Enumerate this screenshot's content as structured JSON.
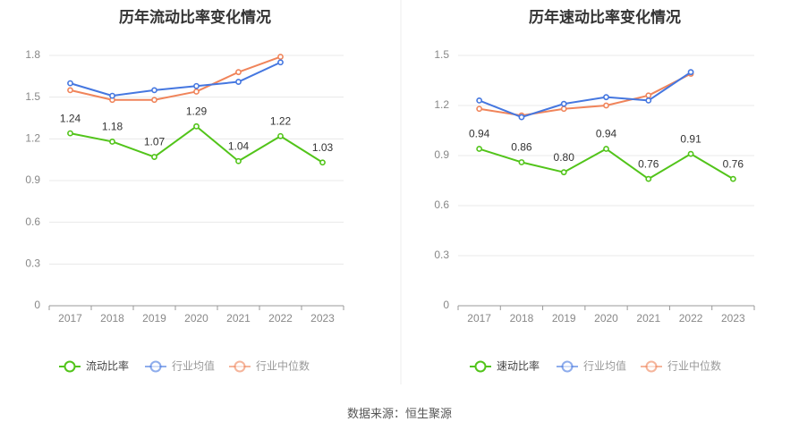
{
  "source_text": "数据来源：恒生聚源",
  "colors": {
    "primary": "#52c41a",
    "industry_avg": "#4577e0",
    "industry_median": "#f0845a",
    "grid": "#e8e8e8",
    "axis": "#999999",
    "axis_text": "#888888",
    "label_text": "#333333",
    "divider": "#eeeeee"
  },
  "chart_data": [
    {
      "type": "line",
      "title": "历年流动比率变化情况",
      "categories": [
        "2017",
        "2018",
        "2019",
        "2020",
        "2021",
        "2022",
        "2023"
      ],
      "ylim": [
        0,
        1.8
      ],
      "yticks": [
        "0",
        "0.3",
        "0.6",
        "0.9",
        "1.2",
        "1.5",
        "1.8"
      ],
      "grid": true,
      "legend_position": "bottom",
      "series": [
        {
          "name": "流动比率",
          "values": [
            1.24,
            1.18,
            1.07,
            1.29,
            1.04,
            1.22,
            1.03
          ],
          "labels": [
            "1.24",
            "1.18",
            "1.07",
            "1.29",
            "1.04",
            "1.22",
            "1.03"
          ],
          "color": "#52c41a"
        },
        {
          "name": "行业均值",
          "values": [
            1.6,
            1.51,
            1.55,
            1.58,
            1.61,
            1.75,
            null
          ],
          "color": "#4577e0"
        },
        {
          "name": "行业中位数",
          "values": [
            1.55,
            1.48,
            1.48,
            1.54,
            1.68,
            1.79,
            null
          ],
          "color": "#f0845a"
        }
      ]
    },
    {
      "type": "line",
      "title": "历年速动比率变化情况",
      "categories": [
        "2017",
        "2018",
        "2019",
        "2020",
        "2021",
        "2022",
        "2023"
      ],
      "ylim": [
        0,
        1.5
      ],
      "yticks": [
        "0",
        "0.3",
        "0.6",
        "0.9",
        "1.2",
        "1.5"
      ],
      "grid": true,
      "legend_position": "bottom",
      "series": [
        {
          "name": "速动比率",
          "values": [
            0.94,
            0.86,
            0.8,
            0.94,
            0.76,
            0.91,
            0.76
          ],
          "labels": [
            "0.94",
            "0.86",
            "0.80",
            "0.94",
            "0.76",
            "0.91",
            "0.76"
          ],
          "color": "#52c41a"
        },
        {
          "name": "行业均值",
          "values": [
            1.23,
            1.13,
            1.21,
            1.25,
            1.23,
            1.4,
            null
          ],
          "color": "#4577e0"
        },
        {
          "name": "行业中位数",
          "values": [
            1.18,
            1.14,
            1.18,
            1.2,
            1.26,
            1.39,
            null
          ],
          "color": "#f0845a"
        }
      ]
    }
  ]
}
